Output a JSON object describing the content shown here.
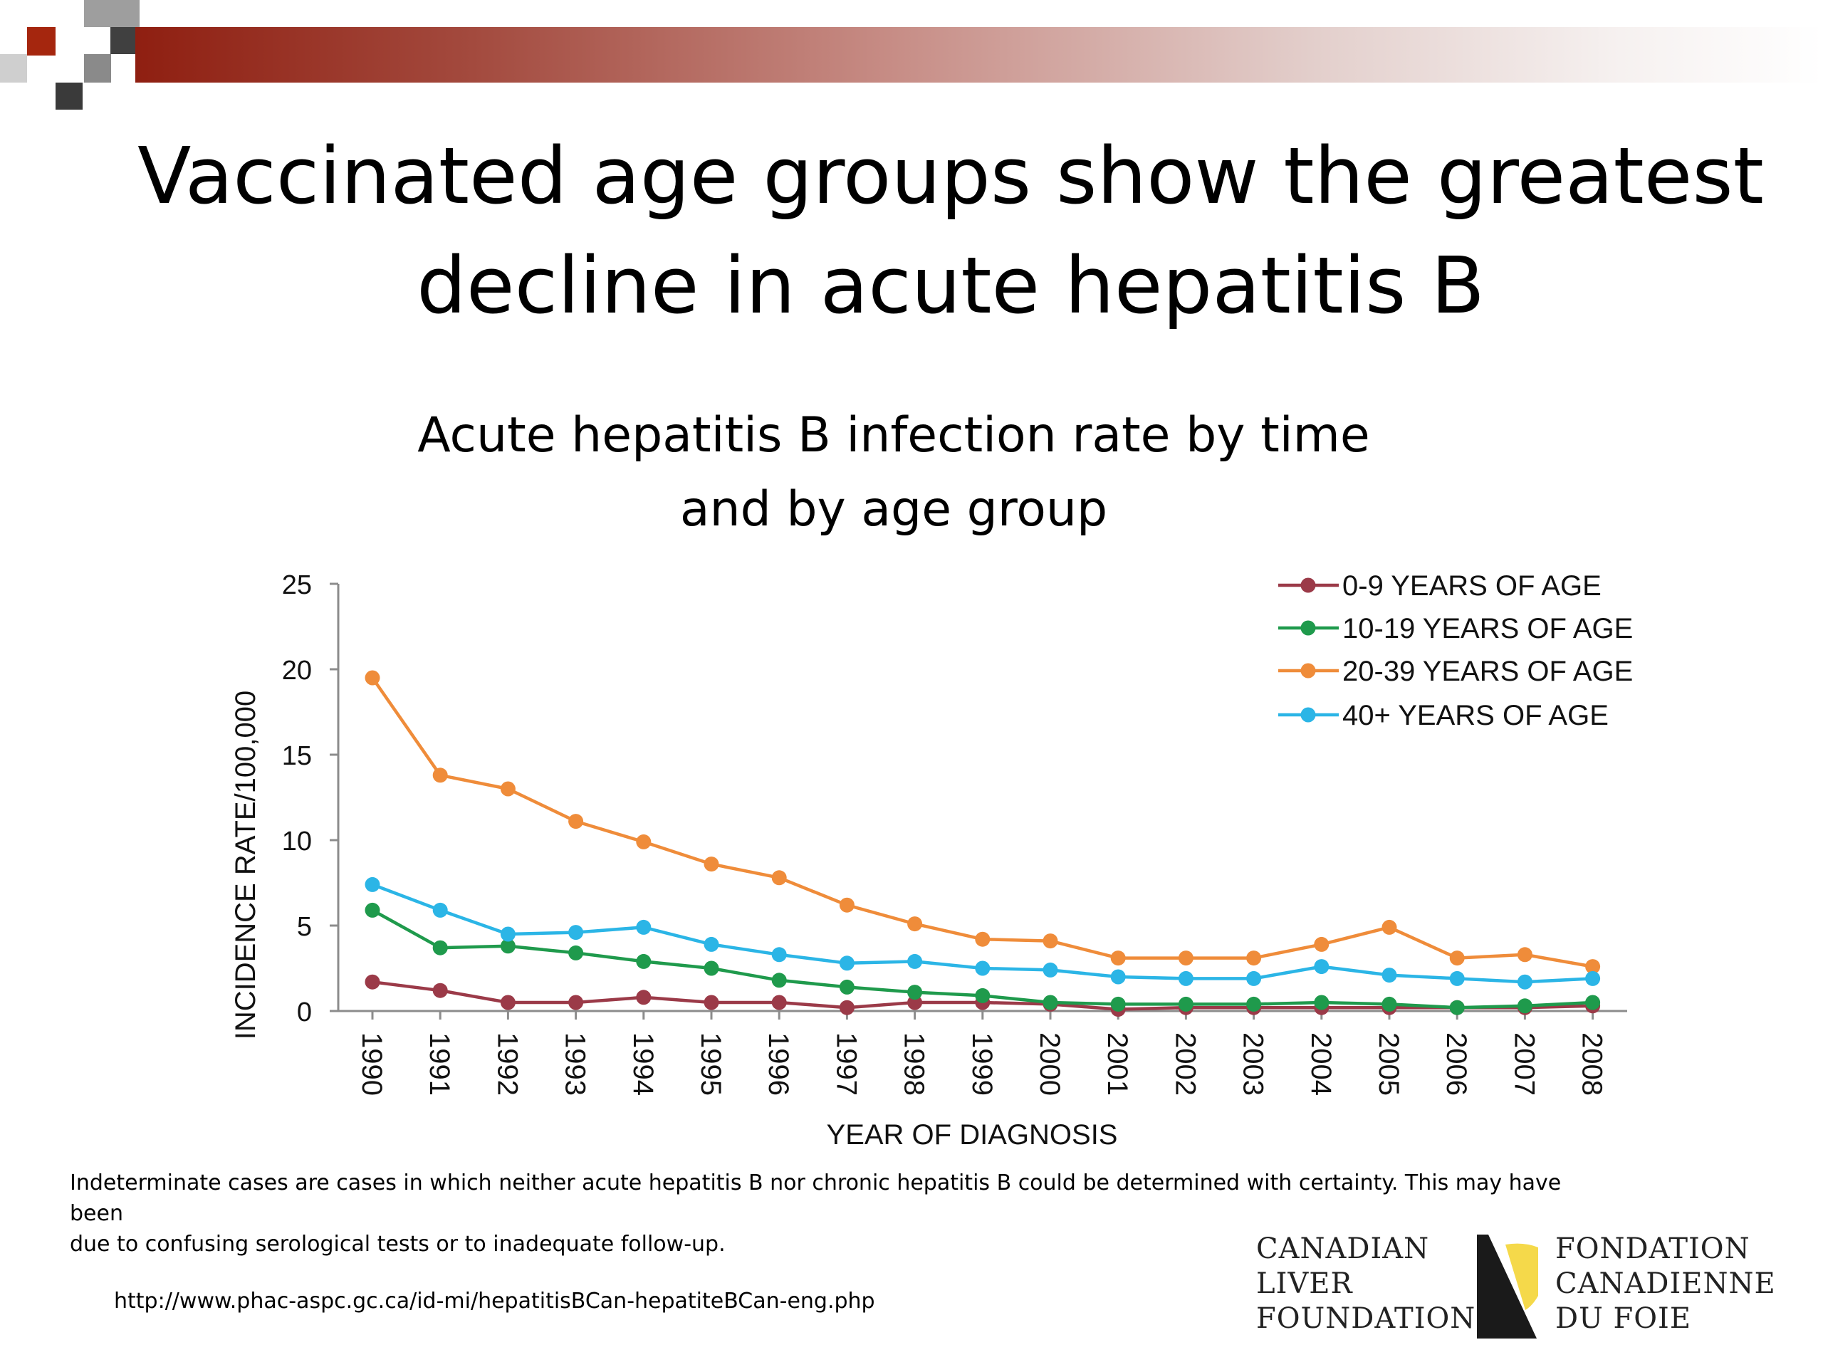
{
  "slide": {
    "title_line1": "Vaccinated age groups show the greatest",
    "title_line2": "decline in acute hepatitis B",
    "note_line1": "Indeterminate cases are cases in which neither acute hepatitis B nor chronic hepatitis B could be determined with certainty. This may have been",
    "note_line2": "due to confusing serological tests or to inadequate follow-up.",
    "source_url": "http://www.phac-aspc.gc.ca/id-mi/hepatitisBCan-hepatiteBCan-eng.php"
  },
  "logo": {
    "english": [
      "CANADIAN",
      "LIVER",
      "FOUNDATION"
    ],
    "french": [
      "FONDATION",
      "CANADIENNE",
      "DU FOIE"
    ],
    "colors": {
      "dark": "#1a1a1a",
      "accent": "#f5d94a"
    }
  },
  "colors": {
    "header_bar": "#8f1f11",
    "corner_red": "#a5260e",
    "corner_dark": "#404040",
    "corner_gray": "#9e9e9e"
  },
  "chart_data": {
    "type": "line",
    "title_line1": "Acute hepatitis B infection rate by time",
    "title_line2": "and by age group",
    "xlabel": "YEAR OF DIAGNOSIS",
    "ylabel": "INCIDENCE RATE/100,000",
    "ylim": [
      0,
      25
    ],
    "yticks": [
      "0",
      "5",
      "10",
      "15",
      "20",
      "25"
    ],
    "ytick_values": [
      0,
      5,
      10,
      15,
      20,
      25
    ],
    "grid": false,
    "legend_position": "top-right",
    "categories": [
      "1990",
      "1991",
      "1992",
      "1993",
      "1994",
      "1995",
      "1996",
      "1997",
      "1998",
      "1999",
      "2000",
      "2001",
      "2002",
      "2003",
      "2004",
      "2005",
      "2006",
      "2007",
      "2008"
    ],
    "series": [
      {
        "name": "0-9 YEARS OF AGE",
        "color": "#9b3a48",
        "values": [
          1.7,
          1.2,
          0.5,
          0.5,
          0.8,
          0.5,
          0.5,
          0.2,
          0.5,
          0.5,
          0.4,
          0.1,
          0.2,
          0.2,
          0.2,
          0.2,
          0.2,
          0.2,
          0.3
        ]
      },
      {
        "name": "10-19 YEARS OF AGE",
        "color": "#1f9a4c",
        "values": [
          5.9,
          3.7,
          3.8,
          3.4,
          2.9,
          2.5,
          1.8,
          1.4,
          1.1,
          0.9,
          0.5,
          0.4,
          0.4,
          0.4,
          0.5,
          0.4,
          0.2,
          0.3,
          0.5
        ]
      },
      {
        "name": "20-39 YEARS OF AGE",
        "color": "#ef8c3a",
        "values": [
          19.5,
          13.8,
          13.0,
          11.1,
          9.9,
          8.6,
          7.8,
          6.2,
          5.1,
          4.2,
          4.1,
          3.1,
          3.1,
          3.1,
          3.9,
          4.9,
          3.1,
          3.3,
          2.6
        ]
      },
      {
        "name": "40+ YEARS OF AGE",
        "color": "#2bb5e6",
        "values": [
          7.4,
          5.9,
          4.5,
          4.6,
          4.9,
          3.9,
          3.3,
          2.8,
          2.9,
          2.5,
          2.4,
          2.0,
          1.9,
          1.9,
          2.6,
          2.1,
          1.9,
          1.7,
          1.9
        ]
      }
    ]
  }
}
